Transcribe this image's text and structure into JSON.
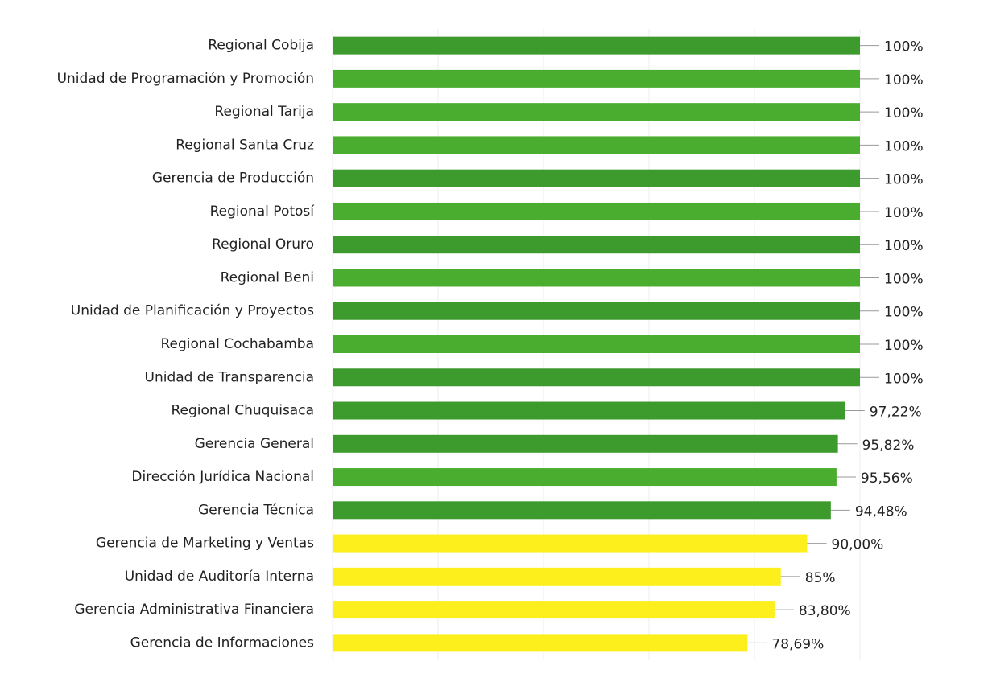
{
  "chart_data": {
    "type": "barh",
    "categories": [
      "Regional Cobija",
      "Unidad de Programación y Promoción",
      "Regional Tarija",
      "Regional Santa Cruz",
      "Gerencia de Producción",
      "Regional Potosí",
      "Regional Oruro",
      "Regional Beni",
      "Unidad de Planificación y Proyectos",
      "Regional Cochabamba",
      "Unidad de Transparencia",
      "Regional Chuquisaca",
      "Gerencia General",
      "Dirección Jurídica Nacional",
      "Gerencia Técnica",
      "Gerencia de Marketing y Ventas",
      "Unidad de Auditoría Interna",
      "Gerencia Administrativa Financiera",
      "Gerencia de Informaciones"
    ],
    "values": [
      100,
      100,
      100,
      100,
      100,
      100,
      100,
      100,
      100,
      100,
      100,
      97.22,
      95.82,
      95.56,
      94.48,
      90,
      85,
      83.8,
      78.69
    ],
    "value_labels": [
      "100%",
      "100%",
      "100%",
      "100%",
      "100%",
      "100%",
      "100%",
      "100%",
      "100%",
      "100%",
      "100%",
      "97,22%",
      "95,82%",
      "95,56%",
      "94,48%",
      "90,00%",
      "85%",
      "83,80%",
      "78,69%"
    ],
    "colors": [
      "#3d9a2d",
      "#4bad30",
      "#4bad30",
      "#4bad30",
      "#3d9a2d",
      "#4bad30",
      "#3d9a2d",
      "#4bad30",
      "#3d9a2d",
      "#4bad30",
      "#3d9a2d",
      "#3d9a2d",
      "#3d9a2d",
      "#4bad30",
      "#3d9a2d",
      "#fdef1c",
      "#fdef1c",
      "#fdef1c",
      "#fdef1c"
    ],
    "xlim": [
      0,
      100
    ],
    "xticks": [
      0,
      20,
      40,
      60,
      80,
      100
    ],
    "grid": true
  }
}
